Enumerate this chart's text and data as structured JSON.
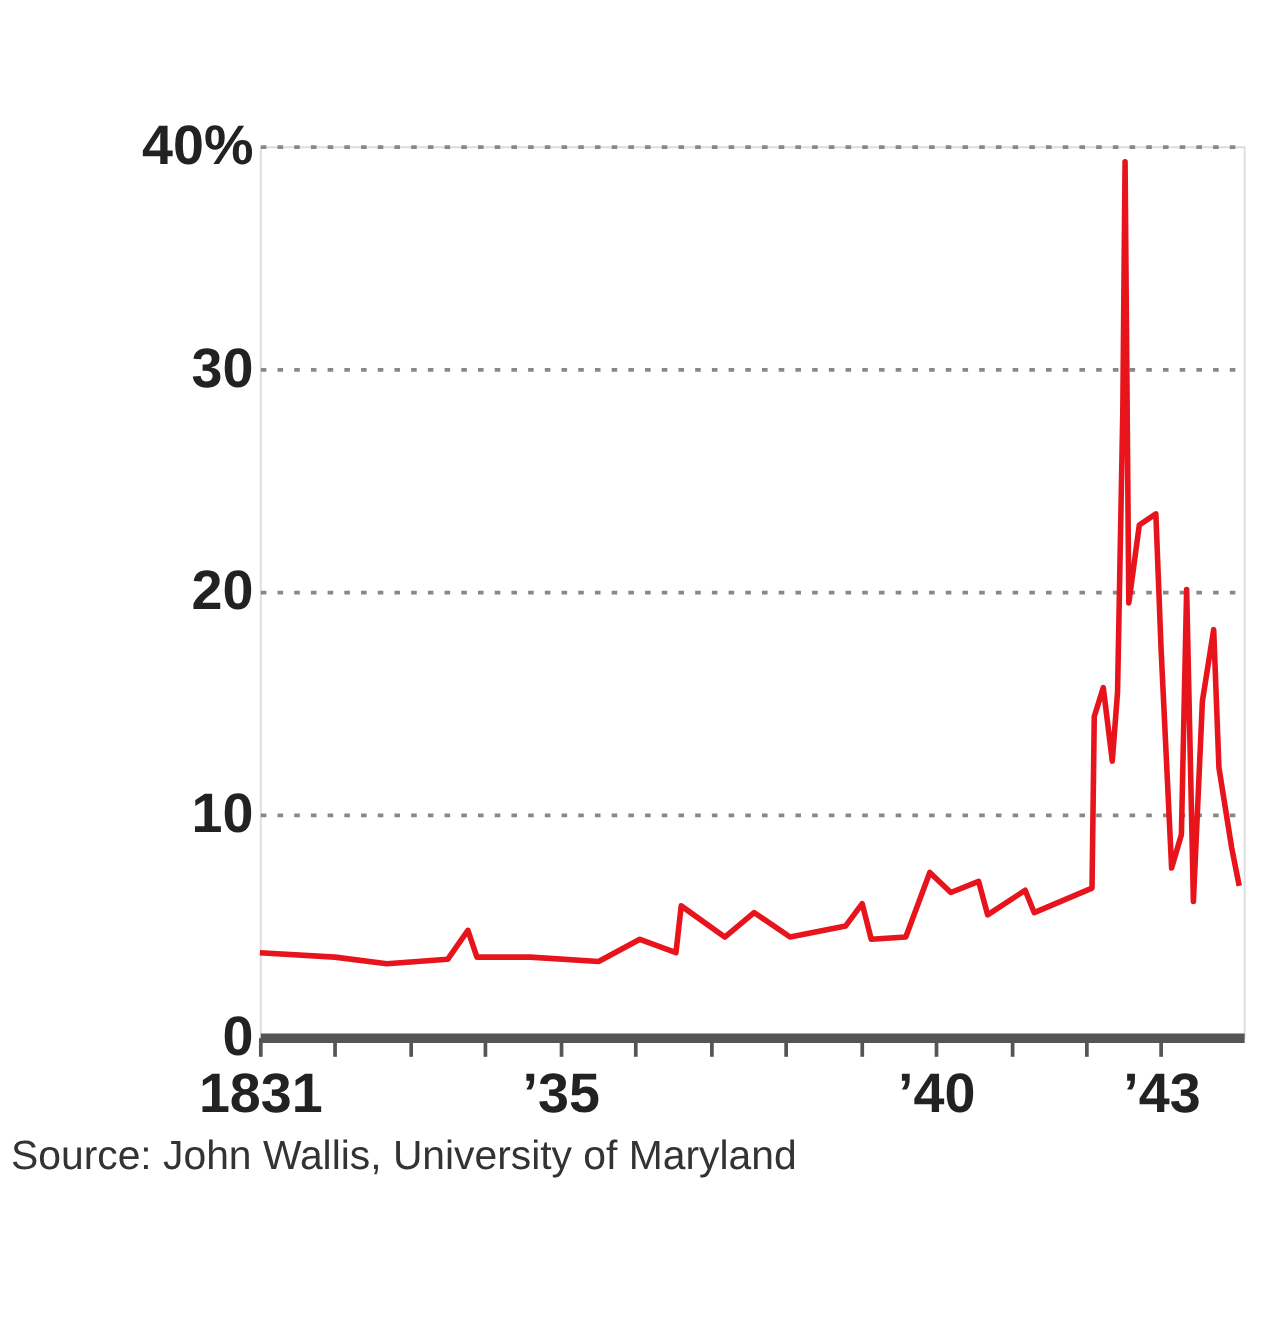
{
  "chart_data": {
    "type": "line",
    "annotations": [
      "Source: John Wallis, University of Maryland"
    ],
    "x": [
      1831.0,
      1832.0,
      1832.69,
      1833.5,
      1833.77,
      1833.89,
      1834.6,
      1835.51,
      1836.06,
      1836.54,
      1836.61,
      1837.19,
      1837.58,
      1838.06,
      1838.8,
      1839.02,
      1839.14,
      1839.6,
      1839.92,
      1840.2,
      1840.57,
      1840.69,
      1841.19,
      1841.31,
      1842.08,
      1842.11,
      1842.23,
      1842.35,
      1842.42,
      1842.49,
      1842.52,
      1842.57,
      1842.71,
      1842.93,
      1843.0,
      1843.14,
      1843.27,
      1843.34,
      1843.43,
      1843.55,
      1843.7,
      1843.77,
      1843.94,
      1844.04
    ],
    "series": [
      {
        "color": "#e8141c",
        "values": [
          3.8,
          3.6,
          3.3,
          3.5,
          4.8,
          3.6,
          3.6,
          3.4,
          4.4,
          3.8,
          5.9,
          4.5,
          5.6,
          4.5,
          5.0,
          6.0,
          4.4,
          4.5,
          7.4,
          6.5,
          7.0,
          5.5,
          6.6,
          5.6,
          6.7,
          14.4,
          15.7,
          12.4,
          15.5,
          28.1,
          39.3,
          19.5,
          23.0,
          23.5,
          17.4,
          7.6,
          9.1,
          20.1,
          6.1,
          15.1,
          18.3,
          12.1,
          8.5,
          6.8
        ]
      }
    ],
    "xlim": [
      1831,
      1844.1
    ],
    "xticks": [
      {
        "value": 1831,
        "label": "1831"
      },
      {
        "value": 1832,
        "label": null
      },
      {
        "value": 1833,
        "label": null
      },
      {
        "value": 1834,
        "label": null
      },
      {
        "value": 1835,
        "label": "’35"
      },
      {
        "value": 1836,
        "label": null
      },
      {
        "value": 1837,
        "label": null
      },
      {
        "value": 1838,
        "label": null
      },
      {
        "value": 1839,
        "label": null
      },
      {
        "value": 1840,
        "label": "’40"
      },
      {
        "value": 1841,
        "label": null
      },
      {
        "value": 1842,
        "label": null
      },
      {
        "value": 1843,
        "label": "’43"
      }
    ],
    "ylim": [
      0,
      40
    ],
    "yticks": [
      0,
      10,
      20,
      30,
      {
        "value": 40,
        "label": "40%"
      }
    ],
    "grid": "y",
    "line_style": "solid",
    "marker": "none"
  }
}
